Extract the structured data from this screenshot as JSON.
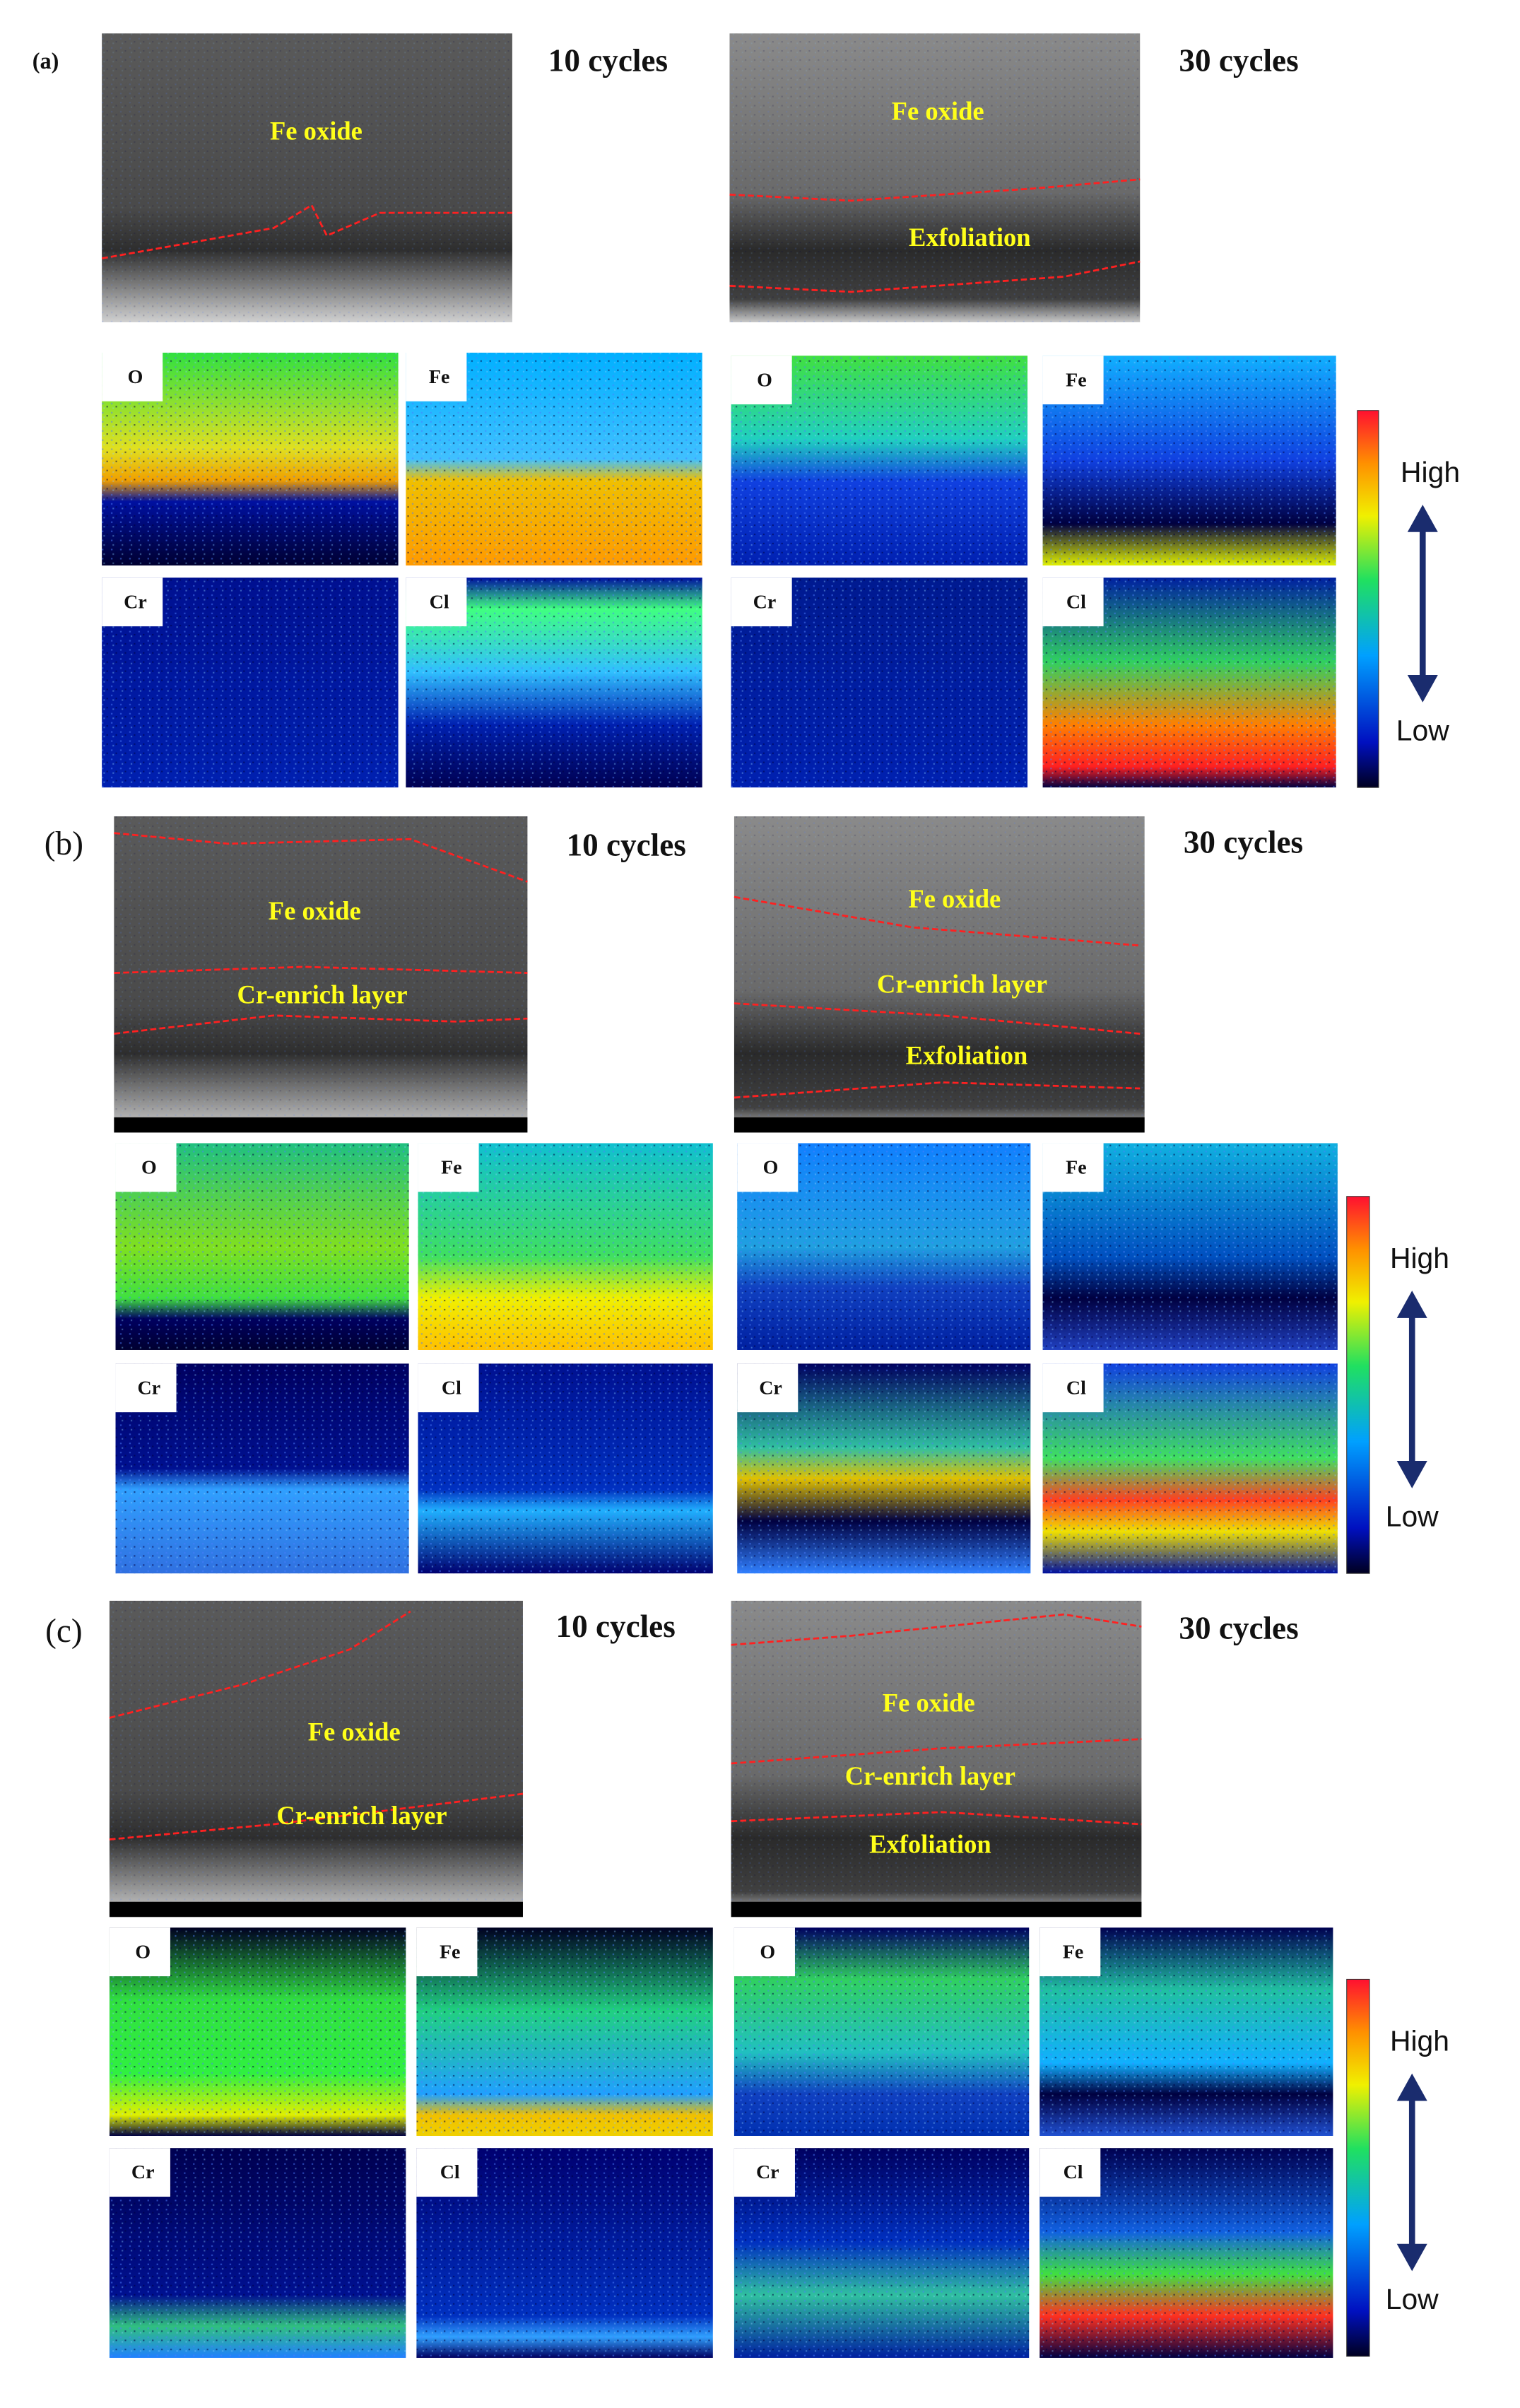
{
  "panels": [
    {
      "label": "(a)",
      "left": {
        "title": "10 cycles",
        "sem_labels": [
          "Fe oxide"
        ],
        "maps": [
          "O",
          "Fe",
          "Cr",
          "Cl"
        ]
      },
      "right": {
        "title": "30 cycles",
        "sem_labels": [
          "Fe oxide",
          "Exfoliation"
        ],
        "maps": [
          "O",
          "Fe",
          "Cr",
          "Cl"
        ]
      },
      "colorbar": {
        "high": "High",
        "low": "Low"
      }
    },
    {
      "label": "(b)",
      "left": {
        "title": "10 cycles",
        "sem_labels": [
          "Fe oxide",
          "Cr-enrich layer"
        ],
        "maps": [
          "O",
          "Fe",
          "Cr",
          "Cl"
        ]
      },
      "right": {
        "title": "30 cycles",
        "sem_labels": [
          "Fe oxide",
          "Cr-enrich layer",
          "Exfoliation"
        ],
        "maps": [
          "O",
          "Fe",
          "Cr",
          "Cl"
        ]
      },
      "colorbar": {
        "high": "High",
        "low": "Low"
      }
    },
    {
      "label": "(c)",
      "left": {
        "title": "10 cycles",
        "sem_labels": [
          "Fe oxide",
          "Cr-enrich layer"
        ],
        "maps": [
          "O",
          "Fe",
          "Cr",
          "Cl"
        ]
      },
      "right": {
        "title": "30 cycles",
        "sem_labels": [
          "Fe oxide",
          "Cr-enrich layer",
          "Exfoliation"
        ],
        "maps": [
          "O",
          "Fe",
          "Cr",
          "Cl"
        ]
      },
      "colorbar": {
        "high": "High",
        "low": "Low"
      }
    }
  ]
}
